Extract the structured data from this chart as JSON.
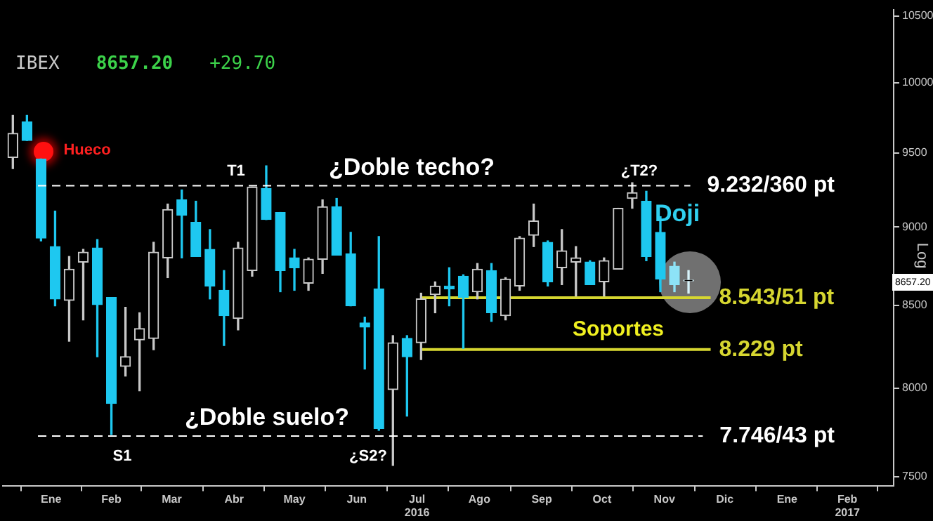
{
  "chart_data": {
    "type": "candlestick",
    "title": "IBEX",
    "subtitle": "8657.20",
    "ylabel": "Log",
    "x": [
      "2015-12-28",
      "2016-01-04",
      "2016-01-11",
      "2016-01-18",
      "2016-01-25",
      "2016-02-01",
      "2016-02-08",
      "2016-02-15",
      "2016-02-22",
      "2016-02-29",
      "2016-03-07",
      "2016-03-14",
      "2016-03-21",
      "2016-03-28",
      "2016-04-04",
      "2016-04-11",
      "2016-04-18",
      "2016-04-25",
      "2016-05-02",
      "2016-05-09",
      "2016-05-16",
      "2016-05-23",
      "2016-05-30",
      "2016-06-06",
      "2016-06-13",
      "2016-06-20",
      "2016-06-27",
      "2016-07-04",
      "2016-07-11",
      "2016-07-18",
      "2016-07-25",
      "2016-08-01",
      "2016-08-08",
      "2016-08-15",
      "2016-08-22",
      "2016-08-29",
      "2016-09-05",
      "2016-09-12",
      "2016-09-19",
      "2016-09-26",
      "2016-10-03",
      "2016-10-10",
      "2016-10-17",
      "2016-10-24",
      "2016-10-31",
      "2016-11-07",
      "2016-11-14",
      "2016-11-21",
      "2016-11-28"
    ],
    "ohlc": [
      [
        9469,
        9764,
        9392,
        9637
      ],
      [
        9718,
        9764,
        9587,
        9587
      ],
      [
        9459,
        9459,
        8909,
        8927
      ],
      [
        8872,
        9105,
        8496,
        8539
      ],
      [
        8530,
        8808,
        8279,
        8727
      ],
      [
        8772,
        8854,
        8409,
        8836
      ],
      [
        8863,
        8918,
        8186,
        8504
      ],
      [
        8548,
        8548,
        7733,
        7911
      ],
      [
        8128,
        8487,
        8071,
        8186
      ],
      [
        8287,
        8453,
        7984,
        8356
      ],
      [
        8296,
        8900,
        8228,
        8836
      ],
      [
        8799,
        9152,
        8673,
        9115
      ],
      [
        9180,
        9247,
        8799,
        9077
      ],
      [
        9030,
        9171,
        8808,
        8808
      ],
      [
        8854,
        8983,
        8539,
        8620
      ],
      [
        8593,
        8718,
        8253,
        8435
      ],
      [
        8418,
        8900,
        8348,
        8863
      ],
      [
        8718,
        9266,
        8682,
        9266
      ],
      [
        9257,
        9411,
        9049,
        9049
      ],
      [
        9096,
        9096,
        8584,
        8718
      ],
      [
        8799,
        8854,
        8593,
        8736
      ],
      [
        8638,
        8799,
        8593,
        8790
      ],
      [
        8790,
        9180,
        8700,
        9134
      ],
      [
        9134,
        9190,
        8817,
        8817
      ],
      [
        8826,
        8965,
        8496,
        8496
      ],
      [
        8391,
        8426,
        8112,
        8365
      ],
      [
        8602,
        8937,
        7757,
        7767
      ],
      [
        7992,
        8313,
        7561,
        8270
      ],
      [
        8296,
        8313,
        7838,
        8186
      ],
      [
        8270,
        8575,
        8169,
        8539
      ],
      [
        8566,
        8646,
        8453,
        8620
      ],
      [
        8620,
        8736,
        8496,
        8602
      ],
      [
        8682,
        8691,
        8236,
        8548
      ],
      [
        8584,
        8763,
        8539,
        8727
      ],
      [
        8718,
        8763,
        8400,
        8453
      ],
      [
        8435,
        8673,
        8409,
        8664
      ],
      [
        8620,
        8937,
        8593,
        8927
      ],
      [
        8946,
        9152,
        8872,
        9040
      ],
      [
        8900,
        8909,
        8620,
        8646
      ],
      [
        8736,
        8983,
        8629,
        8845
      ],
      [
        8772,
        8872,
        8557,
        8799
      ],
      [
        8772,
        8781,
        8629,
        8629
      ],
      [
        8646,
        8799,
        8557,
        8781
      ],
      [
        8727,
        9124,
        8727,
        9124
      ],
      [
        9190,
        9296,
        9124,
        9228
      ],
      [
        9171,
        9238,
        8781,
        8808
      ],
      [
        8965,
        9068,
        8584,
        8664
      ],
      [
        8745,
        8772,
        8584,
        8629
      ],
      [
        8652,
        8718,
        8575,
        8657.2
      ]
    ],
    "colors": [
      "#c8c8c8",
      "#1ec8f0",
      "#1ec8f0",
      "#1ec8f0",
      "#c8c8c8",
      "#c8c8c8",
      "#1ec8f0",
      "#1ec8f0",
      "#c8c8c8",
      "#c8c8c8",
      "#c8c8c8",
      "#c8c8c8",
      "#1ec8f0",
      "#1ec8f0",
      "#1ec8f0",
      "#1ec8f0",
      "#c8c8c8",
      "#c8c8c8",
      "#1ec8f0",
      "#1ec8f0",
      "#1ec8f0",
      "#c8c8c8",
      "#c8c8c8",
      "#1ec8f0",
      "#1ec8f0",
      "#1ec8f0",
      "#1ec8f0",
      "#c8c8c8",
      "#1ec8f0",
      "#c8c8c8",
      "#c8c8c8",
      "#1ec8f0",
      "#1ec8f0",
      "#c8c8c8",
      "#1ec8f0",
      "#c8c8c8",
      "#c8c8c8",
      "#c8c8c8",
      "#1ec8f0",
      "#c8c8c8",
      "#c8c8c8",
      "#1ec8f0",
      "#c8c8c8",
      "#c8c8c8",
      "#c8c8c8",
      "#1ec8f0",
      "#1ec8f0",
      "#8de3f7",
      "#d8f4fb"
    ],
    "series": [
      {
        "type": "line",
        "name": "8.543/51 pt",
        "color": "#d6d630",
        "x": [
          "2016-07-18",
          "2016-12-09"
        ],
        "values": [
          8547,
          8547
        ]
      },
      {
        "type": "line",
        "name": "8.229 pt",
        "color": "#d6d630",
        "x": [
          "2016-07-18",
          "2016-12-09"
        ],
        "values": [
          8229,
          8229
        ]
      }
    ],
    "ref_lines": [
      {
        "axis": "y",
        "value": 9275,
        "label": "9.232/360 pt",
        "color": "#ffffff",
        "line_style": "dashed"
      },
      {
        "axis": "y",
        "value": 7725,
        "label": "7.746/43 pt",
        "color": "#ffffff",
        "line_style": "dashed"
      }
    ],
    "log": "y",
    "grid": false,
    "ylim": [
      7450,
      10550
    ],
    "yticks": [
      7500,
      8000,
      8500,
      9000,
      9500,
      10000,
      10500
    ],
    "xlim": [
      "2015-12-23",
      "2017-03-10"
    ],
    "xticks": [
      {
        "value": "2016-01-16",
        "label": "Ene"
      },
      {
        "value": "2016-02-15",
        "label": "Feb"
      },
      {
        "value": "2016-03-16",
        "label": "Mar"
      },
      {
        "value": "2016-04-16",
        "label": "Abr"
      },
      {
        "value": "2016-05-16",
        "label": "May"
      },
      {
        "value": "2016-06-16",
        "label": "Jun"
      },
      {
        "value": "2016-07-16",
        "label": "Jul\n2016"
      },
      {
        "value": "2016-08-16",
        "label": "Ago"
      },
      {
        "value": "2016-09-16",
        "label": "Sep"
      },
      {
        "value": "2016-10-16",
        "label": "Oct"
      },
      {
        "value": "2016-11-16",
        "label": "Nov"
      },
      {
        "value": "2016-12-16",
        "label": "Dic"
      },
      {
        "value": "2017-01-16",
        "label": "Ene"
      },
      {
        "value": "2017-02-15",
        "label": "Feb\n2017"
      }
    ],
    "annotations": [
      "+29.70",
      "8657.20",
      "Hueco",
      "T1",
      "¿Doble techo?",
      "¿T2?",
      "Doji",
      "Soportes",
      "¿Doble suelo?",
      "S1",
      "¿S2?"
    ]
  }
}
